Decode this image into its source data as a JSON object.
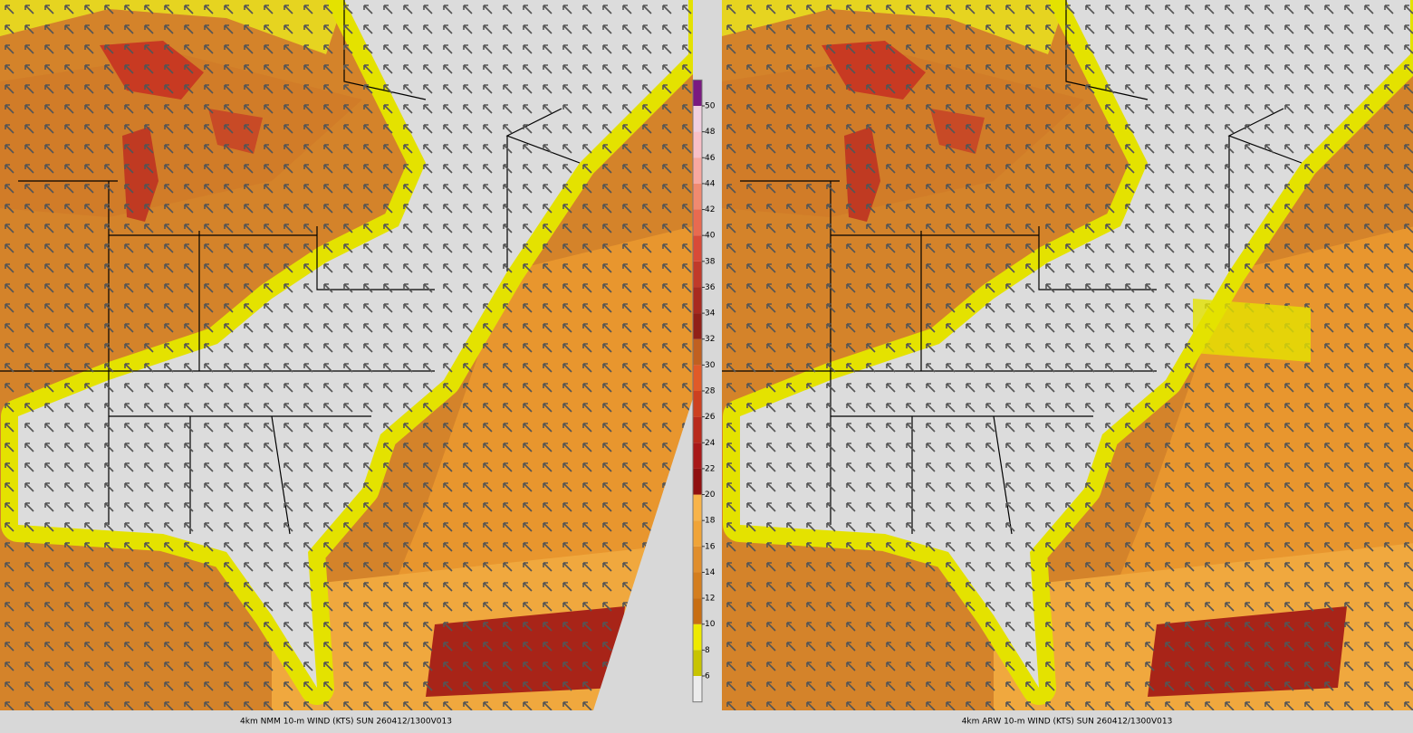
{
  "panels": [
    {
      "caption": "4km NMM 10-m WIND (KTS) SUN 260412/1300V013"
    },
    {
      "caption": "4km ARW 10-m WIND (KTS) SUN 260412/1300V013"
    }
  ],
  "colorbar": {
    "ticks": [
      6,
      8,
      10,
      12,
      14,
      16,
      18,
      20,
      22,
      24,
      26,
      28,
      30,
      32,
      34,
      36,
      38,
      40,
      42,
      44,
      46,
      48,
      50
    ],
    "colors": [
      "#ececec",
      "#c8c400",
      "#eeea00",
      "#c86e12",
      "#d47e1e",
      "#e08e2c",
      "#f0a438",
      "#f8b44a",
      "#901010",
      "#a81818",
      "#b82a1c",
      "#cc4020",
      "#e05a28",
      "#c06020",
      "#902018",
      "#a82a20",
      "#c03a2a",
      "#d84a38",
      "#e86a50",
      "#f08a70",
      "#f8a8a0",
      "#f8c0c8",
      "#f0d0e0",
      "#7a1a80"
    ]
  }
}
